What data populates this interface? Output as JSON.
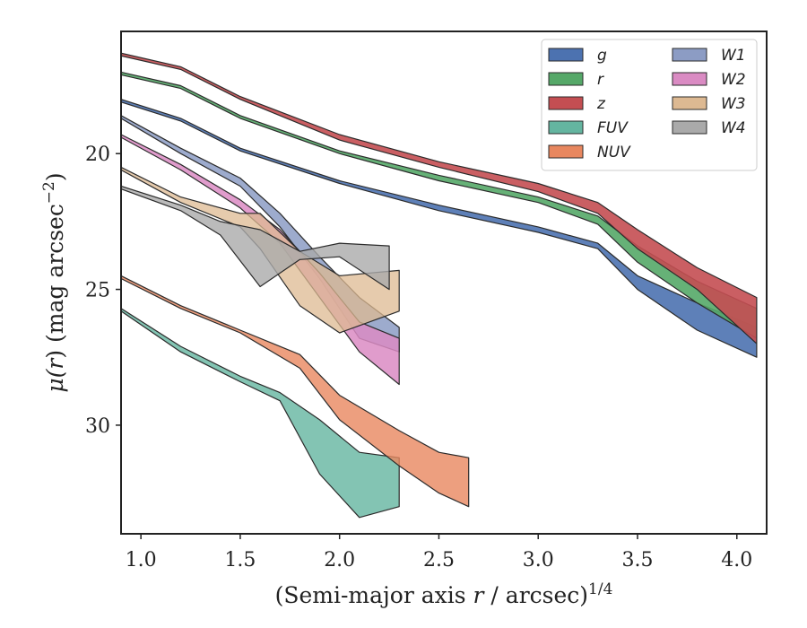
{
  "chart_data": {
    "type": "area",
    "xlabel": "(Semi-major axis r / arcsec)^1/4",
    "xlabel_parts": {
      "prefix": "(Semi-major axis ",
      "var": "r",
      "suffix": " / arcsec)",
      "exponent": "1/4"
    },
    "ylabel": "μ(r) (mag arcsec^−2)",
    "ylabel_parts": {
      "mu": "μ(",
      "var": "r",
      "mid": ") (mag arcsec",
      "exponent": "−2",
      "close": ")"
    },
    "xlim": [
      0.9,
      4.15
    ],
    "ylim": [
      34,
      15.5
    ],
    "y_inverted": true,
    "x_ticks": [
      1.0,
      1.5,
      2.0,
      2.5,
      3.0,
      3.5,
      4.0
    ],
    "x_tick_labels": [
      "1.0",
      "1.5",
      "2.0",
      "2.5",
      "3.0",
      "3.5",
      "4.0"
    ],
    "y_ticks": [
      20,
      25,
      30
    ],
    "y_tick_labels": [
      "20",
      "25",
      "30"
    ],
    "grid": false,
    "legend": {
      "position": "top-right",
      "columns": 2
    },
    "series": [
      {
        "name": "g",
        "color": "#4C72B0",
        "fill_opacity": 0.9,
        "upper": [
          [
            0.9,
            18.0
          ],
          [
            1.2,
            18.7
          ],
          [
            1.5,
            19.8
          ],
          [
            2.0,
            21.0
          ],
          [
            2.5,
            21.9
          ],
          [
            3.0,
            22.7
          ],
          [
            3.3,
            23.3
          ],
          [
            3.5,
            24.5
          ],
          [
            3.8,
            25.5
          ],
          [
            4.1,
            26.4
          ]
        ],
        "lower": [
          [
            0.9,
            18.1
          ],
          [
            1.2,
            18.8
          ],
          [
            1.5,
            19.9
          ],
          [
            2.0,
            21.1
          ],
          [
            2.5,
            22.1
          ],
          [
            3.0,
            22.9
          ],
          [
            3.3,
            23.5
          ],
          [
            3.5,
            25.0
          ],
          [
            3.8,
            26.5
          ],
          [
            4.1,
            27.5
          ]
        ]
      },
      {
        "name": "r",
        "color": "#55A868",
        "fill_opacity": 0.9,
        "upper": [
          [
            0.9,
            17.0
          ],
          [
            1.2,
            17.5
          ],
          [
            1.5,
            18.6
          ],
          [
            2.0,
            19.9
          ],
          [
            2.5,
            20.8
          ],
          [
            3.0,
            21.6
          ],
          [
            3.3,
            22.3
          ],
          [
            3.5,
            23.4
          ],
          [
            3.8,
            24.7
          ],
          [
            4.1,
            25.7
          ]
        ],
        "lower": [
          [
            0.9,
            17.1
          ],
          [
            1.2,
            17.6
          ],
          [
            1.5,
            18.7
          ],
          [
            2.0,
            20.0
          ],
          [
            2.5,
            21.0
          ],
          [
            3.0,
            21.8
          ],
          [
            3.3,
            22.6
          ],
          [
            3.5,
            24.0
          ],
          [
            3.8,
            25.5
          ],
          [
            4.1,
            26.8
          ]
        ]
      },
      {
        "name": "z",
        "color": "#C44E52",
        "fill_opacity": 0.9,
        "upper": [
          [
            0.9,
            16.3
          ],
          [
            1.2,
            16.8
          ],
          [
            1.5,
            17.9
          ],
          [
            2.0,
            19.3
          ],
          [
            2.5,
            20.3
          ],
          [
            3.0,
            21.1
          ],
          [
            3.3,
            21.8
          ],
          [
            3.5,
            22.8
          ],
          [
            3.8,
            24.2
          ],
          [
            4.1,
            25.3
          ]
        ],
        "lower": [
          [
            0.9,
            16.4
          ],
          [
            1.2,
            16.9
          ],
          [
            1.5,
            18.0
          ],
          [
            2.0,
            19.5
          ],
          [
            2.5,
            20.5
          ],
          [
            3.0,
            21.4
          ],
          [
            3.3,
            22.2
          ],
          [
            3.5,
            23.5
          ],
          [
            3.8,
            25.0
          ],
          [
            4.1,
            27.0
          ]
        ]
      },
      {
        "name": "FUV",
        "color": "#64B5A0",
        "fill_opacity": 0.8,
        "upper": [
          [
            0.9,
            25.7
          ],
          [
            1.2,
            27.1
          ],
          [
            1.5,
            28.2
          ],
          [
            1.7,
            28.8
          ],
          [
            1.9,
            29.8
          ],
          [
            2.1,
            31.0
          ],
          [
            2.3,
            31.2
          ]
        ],
        "lower": [
          [
            0.9,
            25.8
          ],
          [
            1.2,
            27.3
          ],
          [
            1.5,
            28.4
          ],
          [
            1.7,
            29.1
          ],
          [
            1.9,
            31.8
          ],
          [
            2.1,
            33.4
          ],
          [
            2.3,
            33.0
          ]
        ]
      },
      {
        "name": "NUV",
        "color": "#E8875F",
        "fill_opacity": 0.8,
        "upper": [
          [
            0.9,
            24.5
          ],
          [
            1.2,
            25.6
          ],
          [
            1.5,
            26.5
          ],
          [
            1.8,
            27.4
          ],
          [
            2.0,
            28.9
          ],
          [
            2.3,
            30.2
          ],
          [
            2.5,
            31.0
          ],
          [
            2.65,
            31.2
          ]
        ],
        "lower": [
          [
            0.9,
            24.6
          ],
          [
            1.2,
            25.7
          ],
          [
            1.5,
            26.6
          ],
          [
            1.8,
            27.9
          ],
          [
            2.0,
            29.8
          ],
          [
            2.3,
            31.5
          ],
          [
            2.5,
            32.5
          ],
          [
            2.65,
            33.0
          ]
        ]
      },
      {
        "name": "W1",
        "color": "#8C9CC4",
        "fill_opacity": 0.85,
        "upper": [
          [
            0.9,
            18.6
          ],
          [
            1.2,
            19.8
          ],
          [
            1.5,
            20.9
          ],
          [
            1.7,
            22.2
          ],
          [
            1.9,
            23.8
          ],
          [
            2.1,
            25.3
          ],
          [
            2.3,
            26.4
          ]
        ],
        "lower": [
          [
            0.9,
            18.7
          ],
          [
            1.2,
            20.0
          ],
          [
            1.5,
            21.2
          ],
          [
            1.7,
            22.7
          ],
          [
            1.9,
            24.6
          ],
          [
            2.1,
            26.8
          ],
          [
            2.3,
            27.3
          ]
        ]
      },
      {
        "name": "W2",
        "color": "#DA8BC3",
        "fill_opacity": 0.85,
        "upper": [
          [
            0.9,
            19.3
          ],
          [
            1.2,
            20.4
          ],
          [
            1.5,
            21.7
          ],
          [
            1.7,
            22.8
          ],
          [
            1.9,
            24.4
          ],
          [
            2.1,
            26.2
          ],
          [
            2.3,
            26.8
          ]
        ],
        "lower": [
          [
            0.9,
            19.4
          ],
          [
            1.2,
            20.6
          ],
          [
            1.5,
            22.0
          ],
          [
            1.7,
            23.3
          ],
          [
            1.9,
            25.3
          ],
          [
            2.1,
            27.3
          ],
          [
            2.3,
            28.5
          ]
        ]
      },
      {
        "name": "W3",
        "color": "#DDB992",
        "fill_opacity": 0.75,
        "upper": [
          [
            0.9,
            20.5
          ],
          [
            1.2,
            21.6
          ],
          [
            1.5,
            22.2
          ],
          [
            1.6,
            22.2
          ],
          [
            1.8,
            23.6
          ],
          [
            2.0,
            24.5
          ],
          [
            2.3,
            24.3
          ]
        ],
        "lower": [
          [
            0.9,
            20.6
          ],
          [
            1.2,
            21.8
          ],
          [
            1.5,
            22.7
          ],
          [
            1.6,
            23.5
          ],
          [
            1.8,
            25.6
          ],
          [
            2.0,
            26.6
          ],
          [
            2.3,
            25.8
          ]
        ]
      },
      {
        "name": "W4",
        "color": "#AAAAAA",
        "fill_opacity": 0.8,
        "upper": [
          [
            0.9,
            21.2
          ],
          [
            1.2,
            21.9
          ],
          [
            1.4,
            22.5
          ],
          [
            1.6,
            22.8
          ],
          [
            1.8,
            23.6
          ],
          [
            2.0,
            23.3
          ],
          [
            2.25,
            23.4
          ]
        ],
        "lower": [
          [
            0.9,
            21.3
          ],
          [
            1.2,
            22.1
          ],
          [
            1.4,
            23.0
          ],
          [
            1.6,
            24.9
          ],
          [
            1.8,
            23.9
          ],
          [
            2.0,
            23.8
          ],
          [
            2.25,
            25.0
          ]
        ]
      }
    ]
  }
}
